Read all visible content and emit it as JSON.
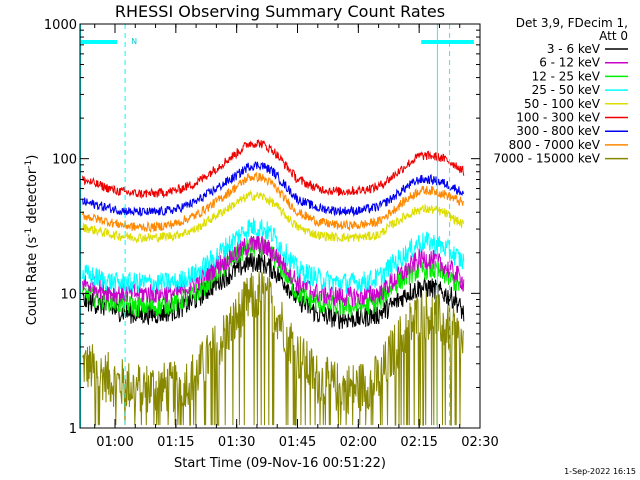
{
  "chart_data": {
    "type": "line",
    "title": "RHESSI Observing Summary Count Rates",
    "xlabel": "Start Time (09-Nov-16 00:51:22)",
    "ylabel_main": "Count Rate (s",
    "ylabel_sup1": "-1",
    "ylabel_mid": " detector",
    "ylabel_sup2": "-1",
    "ylabel_end": ")",
    "yscale": "log",
    "ylim": [
      1,
      1000
    ],
    "xlim_min": [
      51.37,
      150
    ],
    "x_ticks": [
      {
        "min": 60,
        "label": "01:00"
      },
      {
        "min": 75,
        "label": "01:15"
      },
      {
        "min": 90,
        "label": "01:30"
      },
      {
        "min": 105,
        "label": "01:45"
      },
      {
        "min": 120,
        "label": "02:00"
      },
      {
        "min": 135,
        "label": "02:15"
      },
      {
        "min": 150,
        "label": "02:30"
      }
    ],
    "y_ticks": [
      {
        "value": 1,
        "label": "1"
      },
      {
        "value": 10,
        "label": "10"
      },
      {
        "value": 100,
        "label": "100"
      },
      {
        "value": 1000,
        "label": "1000"
      }
    ],
    "legend_header": [
      "Det 3,9, FDecim 1,",
      "Att 0"
    ],
    "night_marker": "N",
    "time_sample_min": [
      52,
      60,
      65,
      70,
      75,
      80,
      85,
      90,
      93,
      96,
      99,
      102,
      105,
      110,
      115,
      120,
      125,
      128,
      132,
      135,
      138,
      141,
      144,
      146
    ],
    "series": [
      {
        "name": "3 - 6 keV",
        "color": "#000000",
        "values": [
          9,
          7.5,
          7,
          7,
          7.5,
          9,
          12,
          15,
          17,
          17,
          15,
          12,
          9,
          7,
          6.5,
          6.5,
          7,
          8,
          10,
          11,
          11,
          10,
          9,
          7
        ]
      },
      {
        "name": "6 - 12 keV",
        "color": "#cc00cc",
        "values": [
          12,
          10,
          10,
          10,
          10,
          12,
          16,
          20,
          23,
          23,
          20,
          16,
          12,
          10,
          9.5,
          9.5,
          10,
          12,
          15,
          18,
          18,
          16,
          14,
          12
        ]
      },
      {
        "name": "12 - 25 keV",
        "color": "#00ee00",
        "values": [
          10,
          8.5,
          8,
          8,
          8.5,
          10,
          14,
          19,
          22,
          22,
          19,
          14,
          10,
          8.5,
          8,
          8,
          8.5,
          11,
          13.5,
          15,
          15,
          14,
          12,
          11
        ]
      },
      {
        "name": "25 - 50 keV",
        "color": "#00ffff",
        "values": [
          14,
          12,
          12,
          12,
          12,
          14,
          19,
          26,
          31,
          31,
          27,
          20,
          15,
          13,
          12,
          12,
          13,
          16,
          20,
          24,
          24,
          22,
          19,
          17
        ]
      },
      {
        "name": "50 - 100 keV",
        "color": "#dddd00",
        "values": [
          31,
          27,
          26,
          26,
          27,
          30,
          38,
          47,
          53,
          53,
          47,
          38,
          31,
          27,
          26,
          26,
          27,
          32,
          38,
          42,
          42,
          40,
          35,
          32
        ]
      },
      {
        "name": "100 - 300 keV",
        "color": "#ee0000",
        "values": [
          70,
          58,
          55,
          55,
          58,
          66,
          85,
          110,
          130,
          130,
          115,
          90,
          70,
          60,
          57,
          58,
          62,
          72,
          90,
          105,
          105,
          100,
          90,
          80
        ]
      },
      {
        "name": "300 - 800 keV",
        "color": "#0000ee",
        "values": [
          48,
          42,
          40,
          40,
          42,
          48,
          60,
          75,
          88,
          90,
          80,
          63,
          50,
          43,
          41,
          41,
          44,
          50,
          62,
          70,
          70,
          66,
          60,
          55
        ]
      },
      {
        "name": "800 - 7000 keV",
        "color": "#ff8800",
        "values": [
          38,
          33,
          31,
          31,
          33,
          38,
          48,
          62,
          73,
          73,
          64,
          50,
          40,
          34,
          32,
          32,
          34,
          40,
          50,
          58,
          58,
          55,
          50,
          46
        ]
      },
      {
        "name": "7000 - 15000 keV",
        "color": "#888800",
        "values": [
          3,
          2.2,
          2,
          2,
          2,
          2.5,
          4,
          6.5,
          9,
          10,
          8,
          5.5,
          3.5,
          2.3,
          2,
          2,
          2.3,
          3.5,
          5.5,
          7,
          7,
          6,
          5,
          4
        ]
      }
    ],
    "attenuator_or_night_intervals": [
      {
        "start_min": 51.5,
        "end_min": 60.5
      },
      {
        "start_min": 135.5,
        "end_min": 148.5
      }
    ],
    "dashed_markers_min": [
      62.5,
      142.5
    ],
    "solid_markers_min": [
      51.5,
      139.5
    ]
  },
  "footer_date": "1-Sep-2022 16:15"
}
